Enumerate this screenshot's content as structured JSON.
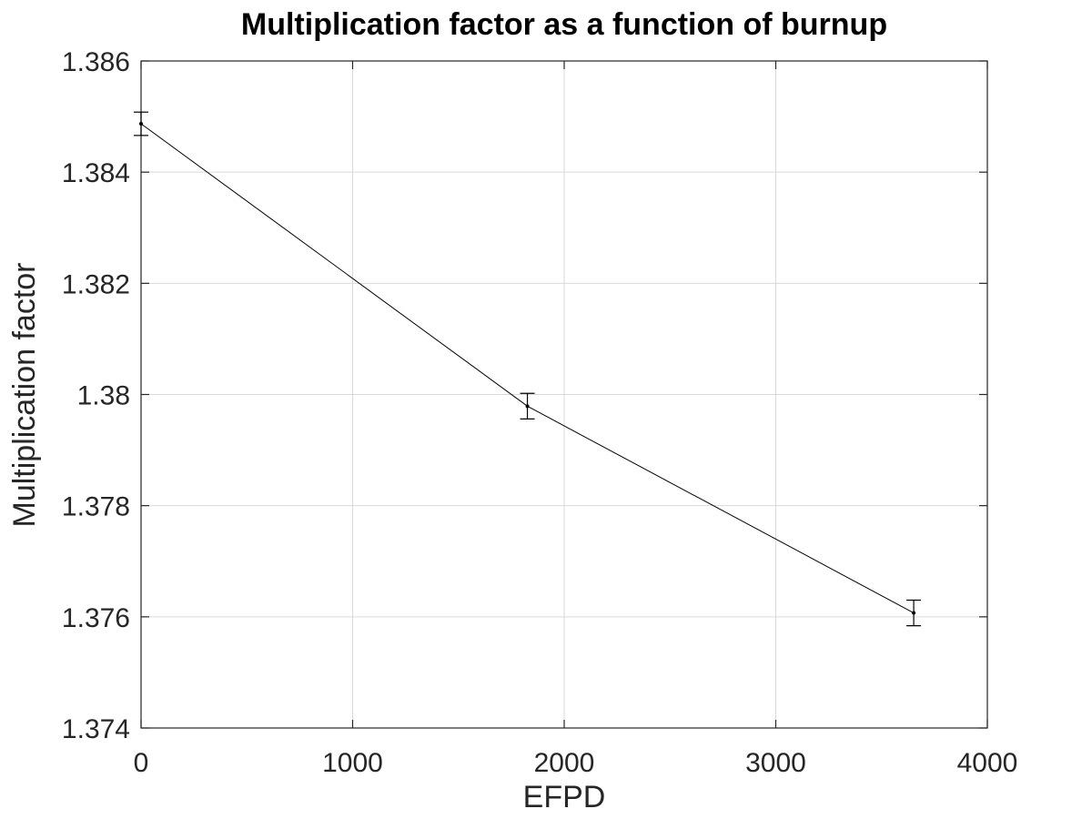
{
  "chart_data": {
    "type": "line",
    "title": "Multiplication factor as a function of burnup",
    "xlabel": "EFPD",
    "ylabel": "Multiplication factor",
    "xlim": [
      0,
      4000
    ],
    "ylim": [
      1.374,
      1.386
    ],
    "grid": true,
    "x_ticks": [
      "0",
      "1000",
      "2000",
      "3000",
      "4000"
    ],
    "y_ticks": [
      "1.374",
      "1.376",
      "1.378",
      "1.38",
      "1.382",
      "1.384",
      "1.386"
    ],
    "series": [
      {
        "x": [
          0,
          1826,
          3652
        ],
        "y": [
          1.38487,
          1.37979,
          1.37607
        ],
        "error": [
          0.00021,
          0.00023,
          0.00023
        ]
      }
    ]
  }
}
